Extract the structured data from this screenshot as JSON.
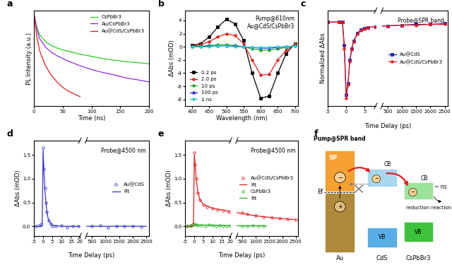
{
  "chart_data": [
    {
      "panel": "a",
      "type": "line",
      "x_label": "Time (ns)",
      "y_label": "PL Intensity (a.u.)",
      "xlim": [
        0,
        200
      ],
      "xticks": [
        0,
        50,
        100,
        150,
        200
      ],
      "ylim": [
        0.001,
        1.2
      ],
      "log": "y",
      "tick_labels": "x",
      "legend": "upper right",
      "x": [
        0,
        5,
        10,
        20,
        30,
        40,
        50,
        60,
        80,
        100,
        120,
        140,
        160,
        180,
        200
      ],
      "series": [
        {
          "name": "CsPbBr3",
          "color": "#22cc22",
          "values": [
            1,
            0.35,
            0.2,
            0.12,
            0.09,
            0.075,
            0.065,
            0.058,
            0.047,
            0.04,
            0.034,
            0.03,
            0.027,
            0.025,
            0.023
          ]
        },
        {
          "name": "Au/CsPbBr3",
          "color": "#8a2be2",
          "values": [
            1,
            0.3,
            0.15,
            0.08,
            0.055,
            0.042,
            0.034,
            0.028,
            0.02,
            0.015,
            0.012,
            0.01,
            0.008,
            0.007,
            0.006
          ]
        },
        {
          "name": "Au@CdS/CsPbBr3",
          "color": "#e41a1c",
          "values": [
            1,
            0.18,
            0.06,
            0.02,
            0.01,
            0.006,
            0.004,
            0.003,
            0.002,
            null,
            null,
            null,
            null,
            null,
            null
          ]
        }
      ]
    },
    {
      "panel": "b",
      "type": "line",
      "x_label": "Wavelength (nm)",
      "y_label": "ΔAbs (mOD)",
      "annotation": [
        "Pump@610nm",
        "Au@CdS/CsPbBr3"
      ],
      "xlim": [
        380,
        710
      ],
      "xticks": [
        400,
        450,
        500,
        550,
        600,
        650,
        700
      ],
      "ylim": [
        -9,
        5.5
      ],
      "yticks": [
        -8,
        -6,
        -4,
        -2,
        0,
        2,
        4
      ],
      "legend": "lower left",
      "x": [
        400,
        425,
        450,
        475,
        500,
        525,
        550,
        575,
        600,
        625,
        650,
        675,
        700
      ],
      "series": [
        {
          "name": "0.2 ps",
          "color": "#000000",
          "marker": "square",
          "values": [
            0.2,
            0.5,
            1.5,
            3.0,
            4.2,
            3.5,
            1.0,
            -4,
            -7.8,
            -7.5,
            -4,
            -1,
            0.5
          ]
        },
        {
          "name": "2.0 ps",
          "color": "#e41a1c",
          "marker": "circle",
          "values": [
            0.1,
            0.3,
            0.8,
            1.5,
            2.0,
            1.7,
            0.5,
            -2,
            -4.3,
            -4.2,
            -2,
            -0.5,
            0.4
          ]
        },
        {
          "name": "10 ps",
          "color": "#22aa22",
          "marker": "circle",
          "values": [
            0,
            0.1,
            0.2,
            0.3,
            0.3,
            0.2,
            0,
            -0.3,
            -0.5,
            -0.5,
            -0.3,
            -0.1,
            0.2
          ]
        },
        {
          "name": "100 ps",
          "color": "#1f1fdf",
          "marker": "circle",
          "values": [
            0,
            0,
            0.1,
            0.1,
            0.1,
            0.1,
            0,
            -0.1,
            -0.2,
            -0.2,
            -0.1,
            0,
            0.1
          ]
        },
        {
          "name": "1 ns",
          "color": "#22cccc",
          "marker": "circle",
          "values": [
            0,
            0,
            0,
            0.1,
            0.1,
            0,
            0,
            -0.1,
            -0.1,
            -0.1,
            0,
            0,
            0.1
          ]
        }
      ]
    },
    {
      "panel": "c",
      "type": "line",
      "x_label": "Time Delay (ps)",
      "y_label": "Normalized ΔAbs",
      "annotation": "Probe@SPR band",
      "ylim": [
        -1.1,
        0.15
      ],
      "tick_labels": "x",
      "legend": "center right",
      "x_segments": [
        {
          "xlim": [
            -5,
            8
          ],
          "xticks": [
            -5,
            0,
            5
          ]
        },
        {
          "xlim": [
            300,
            2600
          ],
          "xticks": [
            500,
            1000,
            1500,
            2000,
            2500
          ]
        }
      ],
      "series": [
        {
          "name": "Au@CdS",
          "color": "#1f1fbf",
          "marker": "square",
          "line_style": "solid",
          "x": [
            -5,
            -2,
            -1,
            -0.5,
            0,
            0.5,
            1,
            1.5,
            2,
            3,
            4,
            5,
            6,
            8,
            500,
            1000,
            1500,
            2000,
            2500
          ],
          "values": [
            0,
            0,
            0,
            -0.3,
            -0.95,
            -0.8,
            -0.5,
            -0.35,
            -0.25,
            -0.15,
            -0.1,
            -0.08,
            -0.07,
            -0.06,
            -0.05,
            -0.04,
            -0.03,
            -0.03,
            -0.02
          ]
        },
        {
          "name": "Au@CdS/CsPbBr3",
          "color": "#e41a1c",
          "marker": "circle",
          "line_style": "solid",
          "x": [
            -5,
            -2,
            -1,
            -0.5,
            0,
            0.5,
            1,
            1.5,
            2,
            3,
            4,
            5,
            6,
            8,
            500,
            1000,
            1500,
            2000,
            2500
          ],
          "values": [
            0,
            0,
            0,
            -0.35,
            -1.0,
            -0.82,
            -0.52,
            -0.36,
            -0.26,
            -0.16,
            -0.11,
            -0.09,
            -0.07,
            -0.06,
            -0.05,
            -0.04,
            -0.04,
            -0.03,
            -0.03
          ]
        }
      ]
    },
    {
      "panel": "d",
      "type": "line",
      "x_label": "Time Delay (ps)",
      "y_label": "ΔAbs (mOD)",
      "annotation": "Probe@4500 nm",
      "ylim": [
        -0.2,
        1.8
      ],
      "yticks": [
        {
          "value": 0,
          "label": "0.0"
        },
        {
          "value": 0.5,
          "label": "0.5"
        },
        {
          "value": 1,
          "label": "1.0"
        },
        {
          "value": 1.5,
          "label": "1.5"
        }
      ],
      "legend": "center right",
      "x_segments": [
        {
          "xlim": [
            -5,
            20
          ],
          "xticks": [
            -5,
            0,
            5,
            10,
            15,
            20
          ]
        },
        {
          "xlim": [
            300,
            2600
          ],
          "xticks": [
            500,
            1000,
            1500,
            2000,
            2500
          ]
        }
      ],
      "series": [
        {
          "name": "Au@CdS",
          "color": "#3333cc",
          "marker": "ring",
          "line_style": "none",
          "x": [
            -4,
            -2,
            -1,
            0,
            0.5,
            1,
            1.5,
            2,
            3,
            4,
            5,
            7,
            10,
            13,
            16,
            19,
            500,
            800,
            1100,
            1400,
            1700,
            2000,
            2300
          ],
          "values": [
            0,
            0.02,
            0.05,
            1.65,
            1.2,
            0.8,
            0.5,
            0.3,
            0.12,
            0.05,
            0,
            0,
            0.02,
            -0.02,
            0,
            0.01,
            0,
            0.02,
            -0.02,
            0,
            0.01,
            0,
            -0.01
          ]
        },
        {
          "name": "Fit",
          "color": "#3333cc",
          "line_style": "solid",
          "x": [
            -5,
            -0.5,
            0,
            0.5,
            1,
            2,
            3,
            5,
            10,
            20,
            500,
            2500
          ],
          "values": [
            0,
            0,
            1.6,
            1.1,
            0.75,
            0.3,
            0.12,
            0.02,
            0,
            0,
            0,
            0
          ]
        }
      ]
    },
    {
      "panel": "e",
      "type": "line",
      "x_label": "Time Delay (ps)",
      "y_label": "ΔAbs (mOD)",
      "annotation": "Probe@4500 nm",
      "ylim": [
        -0.2,
        1.8
      ],
      "yticks": [
        {
          "value": 0,
          "label": "0.0"
        },
        {
          "value": 0.5,
          "label": "0.5"
        },
        {
          "value": 1,
          "label": "1.0"
        },
        {
          "value": 1.5,
          "label": "1.5"
        }
      ],
      "legend": "center right",
      "x_segments": [
        {
          "xlim": [
            -5,
            20
          ],
          "xticks": [
            -5,
            0,
            5,
            10,
            15,
            20
          ]
        },
        {
          "xlim": [
            300,
            2600
          ],
          "xticks": [
            500,
            1000,
            1500,
            2000,
            2500
          ]
        }
      ],
      "series": [
        {
          "name": "Au@CdS/CsPbBr3",
          "color": "#e41a1c",
          "marker": "ring",
          "line_style": "none",
          "x": [
            -4,
            -2,
            -1,
            0,
            0.5,
            1,
            2,
            3,
            5,
            7,
            10,
            13,
            16,
            19,
            500,
            700,
            1000,
            1300,
            1600,
            1900,
            2200,
            2500
          ],
          "values": [
            0,
            0.02,
            0.05,
            1.55,
            1.3,
            1.0,
            0.7,
            0.55,
            0.45,
            0.4,
            0.38,
            0.35,
            0.33,
            0.3,
            0.28,
            0.25,
            0.22,
            0.2,
            0.18,
            0.17,
            0.15,
            0.14
          ]
        },
        {
          "name": "Fit",
          "color": "#e41a1c",
          "line_style": "solid",
          "x": [
            -5,
            -0.5,
            0,
            0.5,
            1,
            2,
            3,
            5,
            10,
            20,
            500,
            1000,
            1500,
            2000,
            2500
          ],
          "values": [
            0,
            0,
            1.5,
            1.25,
            1.0,
            0.72,
            0.56,
            0.46,
            0.38,
            0.31,
            0.27,
            0.22,
            0.19,
            0.16,
            0.14
          ]
        },
        {
          "name": "CsPbBr3",
          "color": "#22aa22",
          "marker": "ring",
          "line_style": "none",
          "x": [
            -4,
            -2,
            0,
            1,
            2,
            4,
            6,
            8,
            10,
            12,
            14,
            16,
            18,
            20,
            500,
            700,
            900,
            1100,
            1300
          ],
          "values": [
            0,
            0.01,
            0.05,
            0.03,
            0.02,
            0.02,
            0.01,
            0.03,
            0.02,
            0.01,
            0.02,
            0.0,
            0.01,
            0.02,
            0.01,
            0.0,
            0.02,
            0.01,
            0.0
          ]
        },
        {
          "name": "Fit",
          "color": "#22aa22",
          "line_style": "solid",
          "x": [
            -5,
            0,
            20,
            500,
            1400
          ],
          "values": [
            0,
            0.03,
            0.015,
            0.01,
            0.01
          ]
        }
      ]
    }
  ],
  "diagram": {
    "panel": "f",
    "pump": "Pump@SPR band",
    "sp": "SP",
    "fermi": "Ef",
    "electron": "−",
    "hole": "+",
    "cb_labels": [
      "CB",
      "CB"
    ],
    "vb_labels": [
      "VB",
      "VB"
    ],
    "lifetime": "~ ns",
    "reaction": "reduction reaction",
    "materials": [
      "Au",
      "CdS",
      "CsPbBr3"
    ]
  }
}
